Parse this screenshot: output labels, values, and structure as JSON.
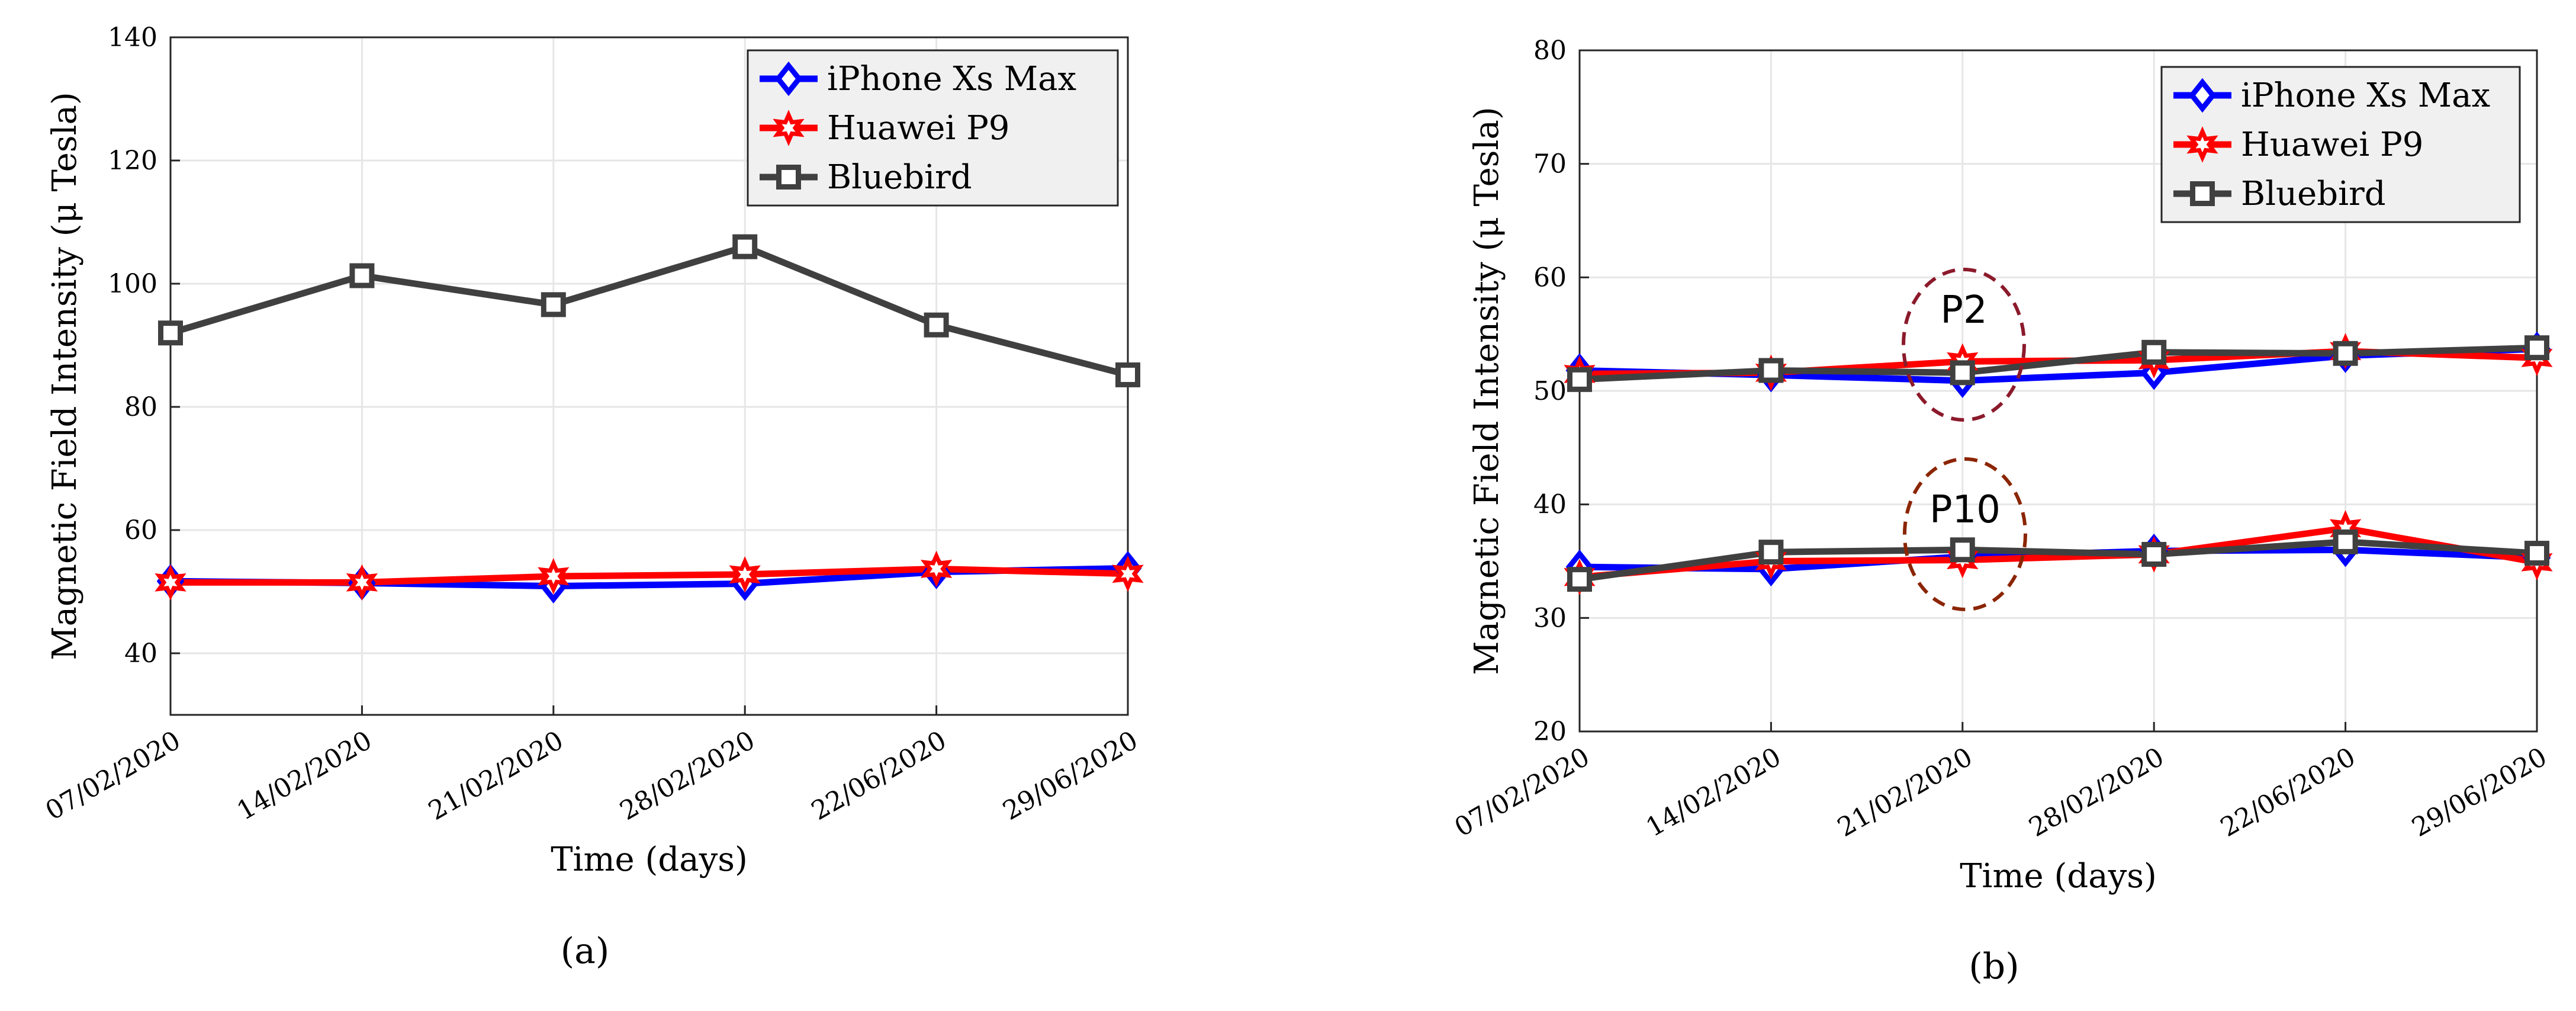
{
  "colors": {
    "iphone": "#0000ff",
    "huawei": "#ff0000",
    "bluebird": "#404040",
    "grid": "#e6e6e6",
    "legend_bg": "#f0f0f0",
    "annotation_p2": "#8b1a2b",
    "annotation_p10": "#8b2500"
  },
  "captions": {
    "a": "(a)",
    "b": "(b)"
  },
  "chart_data": [
    {
      "type": "line",
      "caption": "(a)",
      "xlabel": "Time (days)",
      "ylabel": "Magnetic Field Intensity (μ Tesla)",
      "categories": [
        "07/02/2020",
        "14/02/2020",
        "21/02/2020",
        "28/02/2020",
        "22/06/2020",
        "29/06/2020"
      ],
      "ylim": [
        30,
        140
      ],
      "yticks": [
        40,
        60,
        80,
        100,
        120,
        140
      ],
      "grid": true,
      "legend_position": "top-right",
      "series": [
        {
          "name": "iPhone Xs Max",
          "marker": "diamond",
          "values": [
            51.7,
            51.4,
            50.9,
            51.3,
            53.2,
            53.8
          ]
        },
        {
          "name": "Huawei P9",
          "marker": "hexagram",
          "values": [
            51.5,
            51.5,
            52.5,
            52.8,
            53.7,
            52.9
          ]
        },
        {
          "name": "Bluebird",
          "marker": "square",
          "values": [
            92,
            101.3,
            96.6,
            106,
            93.3,
            85.2
          ]
        }
      ]
    },
    {
      "type": "line",
      "caption": "(b)",
      "xlabel": "Time (days)",
      "ylabel": "Magnetic Field Intensity (μ Tesla)",
      "categories": [
        "07/02/2020",
        "14/02/2020",
        "21/02/2020",
        "28/02/2020",
        "22/06/2020",
        "29/06/2020"
      ],
      "ylim": [
        20,
        80
      ],
      "yticks": [
        20,
        30,
        40,
        50,
        60,
        70,
        80
      ],
      "grid": true,
      "legend_position": "top-right",
      "annotations": [
        "P2",
        "P10"
      ],
      "series": [
        {
          "name": "iPhone Xs Max",
          "marker": "diamond",
          "values": [
            51.8,
            51.4,
            50.9,
            51.6,
            53.1,
            53.7
          ]
        },
        {
          "name": "Huawei P9",
          "marker": "hexagram",
          "values": [
            51.5,
            51.6,
            52.6,
            52.7,
            53.5,
            52.9
          ]
        },
        {
          "name": "Bluebird",
          "marker": "square",
          "values": [
            51.0,
            51.8,
            51.6,
            53.4,
            53.3,
            53.8
          ]
        },
        {
          "name": "iPhone Xs Max",
          "marker": "diamond",
          "values": [
            34.5,
            34.3,
            35.4,
            35.9,
            36.0,
            35.3
          ]
        },
        {
          "name": "Huawei P9",
          "marker": "hexagram",
          "values": [
            33.6,
            35.0,
            35.1,
            35.6,
            37.9,
            34.9
          ]
        },
        {
          "name": "Bluebird",
          "marker": "square",
          "values": [
            33.4,
            35.8,
            36.0,
            35.6,
            36.7,
            35.7
          ]
        }
      ]
    }
  ]
}
